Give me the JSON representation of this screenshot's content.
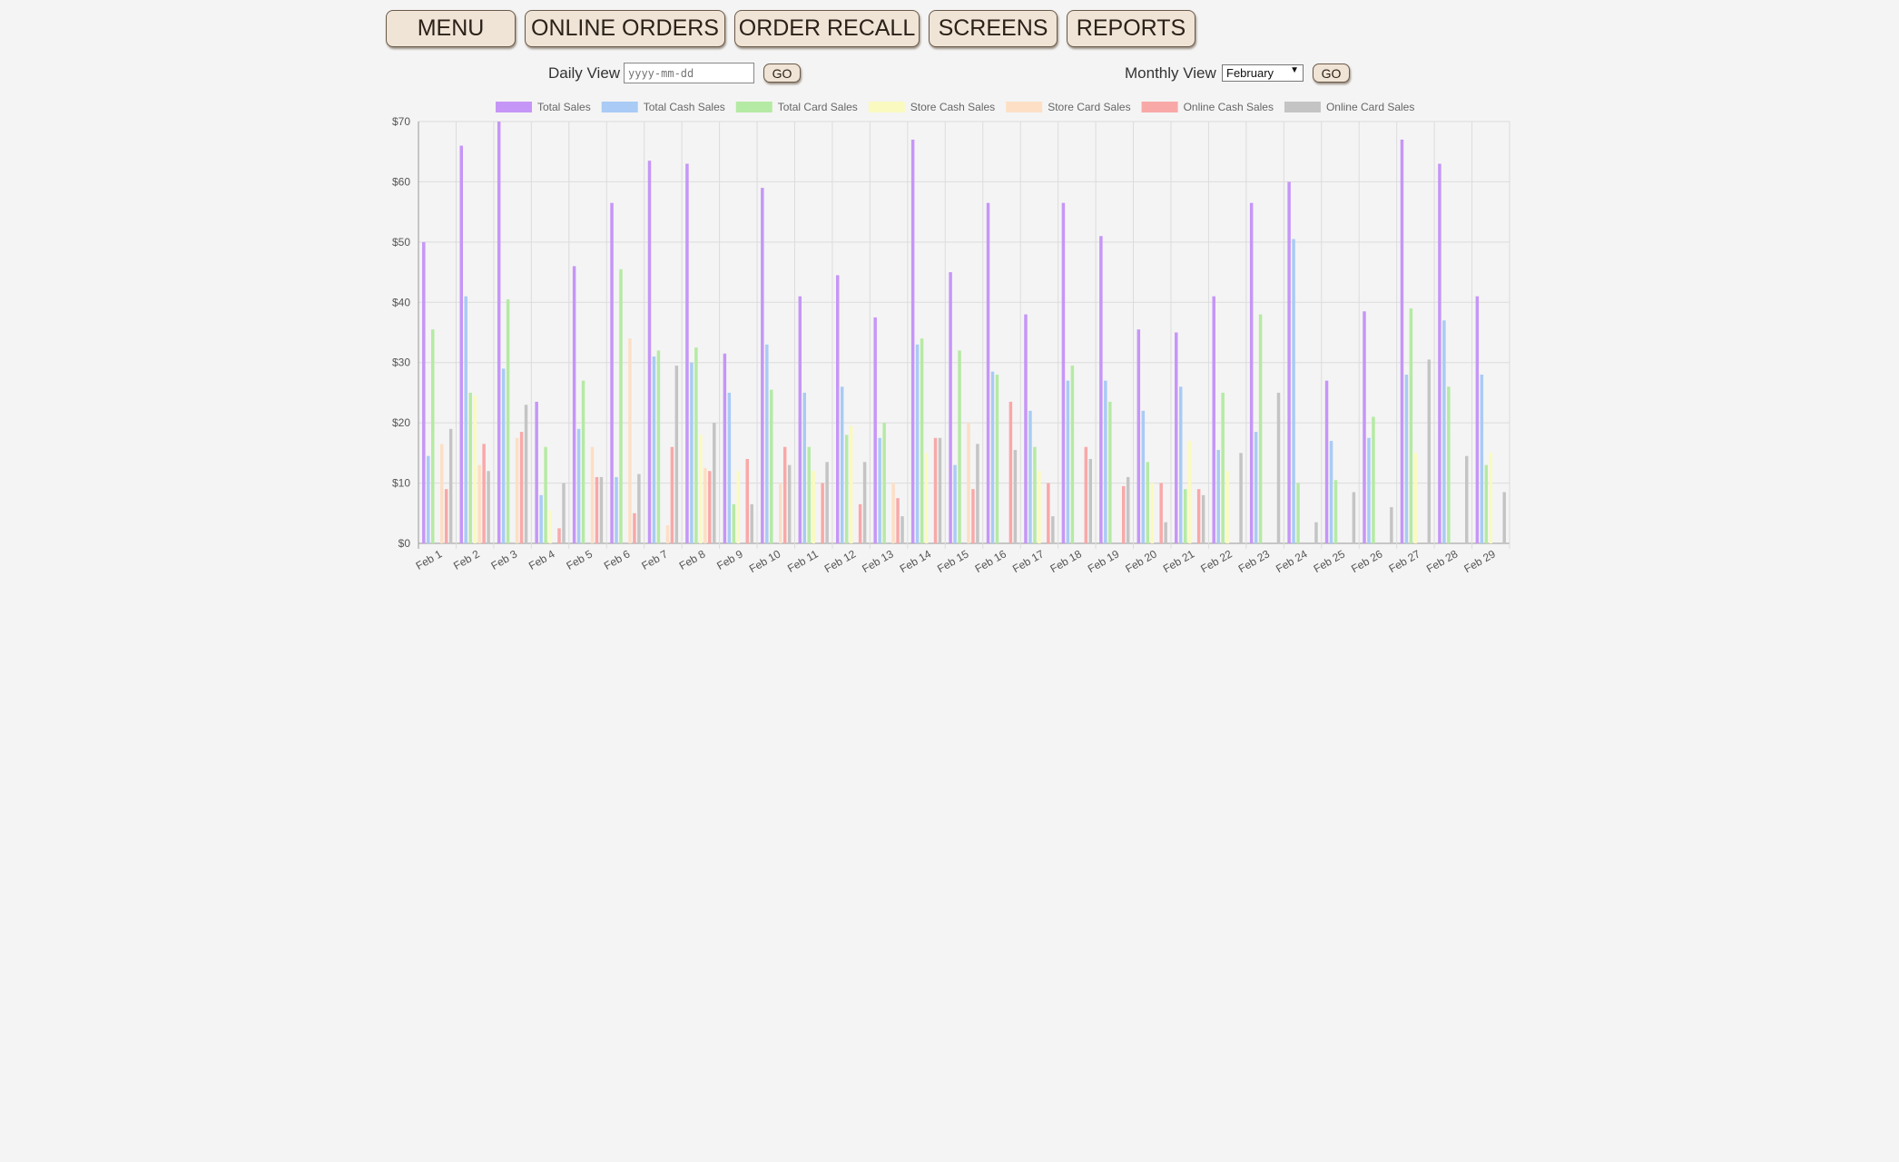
{
  "nav": {
    "menu": "MENU",
    "online_orders": "ONLINE ORDERS",
    "order_recall": "ORDER RECALL",
    "screens": "SCREENS",
    "reports": "REPORTS"
  },
  "daily": {
    "label": "Daily View",
    "placeholder": "yyyy-mm-dd",
    "go": "GO"
  },
  "monthly": {
    "label": "Monthly View",
    "selected": "February",
    "go": "GO"
  },
  "chart_data": {
    "type": "bar",
    "categories": [
      "Feb 1",
      "Feb 2",
      "Feb 3",
      "Feb 4",
      "Feb 5",
      "Feb 6",
      "Feb 7",
      "Feb 8",
      "Feb 9",
      "Feb 10",
      "Feb 11",
      "Feb 12",
      "Feb 13",
      "Feb 14",
      "Feb 15",
      "Feb 16",
      "Feb 17",
      "Feb 18",
      "Feb 19",
      "Feb 20",
      "Feb 21",
      "Feb 22",
      "Feb 23",
      "Feb 24",
      "Feb 25",
      "Feb 26",
      "Feb 27",
      "Feb 28",
      "Feb 29"
    ],
    "ylim": [
      0,
      70
    ],
    "yticks": [
      "$0",
      "$10",
      "$20",
      "$30",
      "$40",
      "$50",
      "$60",
      "$70"
    ],
    "grid": true,
    "legend_position": "top",
    "series": [
      {
        "name": "Total Sales",
        "color": "#c696f7",
        "values": [
          50,
          66,
          70,
          23.5,
          46,
          56.5,
          63.5,
          63,
          31.5,
          59,
          41,
          44.5,
          37.5,
          67,
          45,
          56.5,
          38,
          56.5,
          51,
          35.5,
          35,
          41,
          56.5,
          60,
          27,
          38.5,
          67,
          63,
          41
        ]
      },
      {
        "name": "Total Cash Sales",
        "color": "#a9cbf5",
        "values": [
          14.5,
          41,
          29,
          8,
          19,
          11,
          31,
          30,
          25,
          33,
          25,
          26,
          17.5,
          33,
          13,
          28.5,
          22,
          27,
          27,
          22,
          26,
          15.5,
          18.5,
          50.5,
          17,
          17.5,
          28,
          37,
          28
        ]
      },
      {
        "name": "Total Card Sales",
        "color": "#b5eaa4",
        "values": [
          35.5,
          25,
          40.5,
          16,
          27,
          45.5,
          32,
          32.5,
          6.5,
          25.5,
          16,
          18,
          20,
          34,
          32,
          28,
          16,
          29.5,
          23.5,
          13.5,
          9,
          25,
          38,
          10,
          10.5,
          21,
          39,
          26,
          13
        ]
      },
      {
        "name": "Store Cash Sales",
        "color": "#fafac0",
        "values": [
          0,
          24.5,
          0,
          5.5,
          0,
          0,
          0,
          18,
          12,
          0,
          12,
          19.5,
          0,
          15,
          0,
          0,
          12,
          0,
          0,
          10,
          17,
          12,
          0,
          0,
          0,
          0,
          15,
          0,
          15
        ]
      },
      {
        "name": "Store Card Sales",
        "color": "#fddfc5",
        "values": [
          16.5,
          13,
          17.5,
          0,
          16,
          34,
          3,
          12.5,
          0,
          10,
          0,
          0,
          10,
          0,
          20,
          0,
          0,
          0,
          0,
          0,
          0,
          0,
          0,
          0,
          0,
          0,
          0,
          0,
          0
        ]
      },
      {
        "name": "Online Cash Sales",
        "color": "#f9a8a8",
        "values": [
          9,
          16.5,
          18.5,
          2.5,
          11,
          5,
          16,
          12,
          14,
          16,
          10,
          6.5,
          7.5,
          17.5,
          9,
          23.5,
          10,
          16,
          9.5,
          10,
          9,
          0,
          0,
          0,
          0,
          0,
          0,
          0,
          0
        ]
      },
      {
        "name": "Online Card Sales",
        "color": "#c4c4c4",
        "values": [
          19,
          12,
          23,
          10,
          11,
          11.5,
          29.5,
          20,
          6.5,
          13,
          13.5,
          13.5,
          4.5,
          17.5,
          16.5,
          15.5,
          4.5,
          14,
          11,
          3.5,
          8,
          15,
          25,
          3.5,
          8.5,
          6,
          30.5,
          14.5,
          8.5
        ]
      }
    ]
  }
}
